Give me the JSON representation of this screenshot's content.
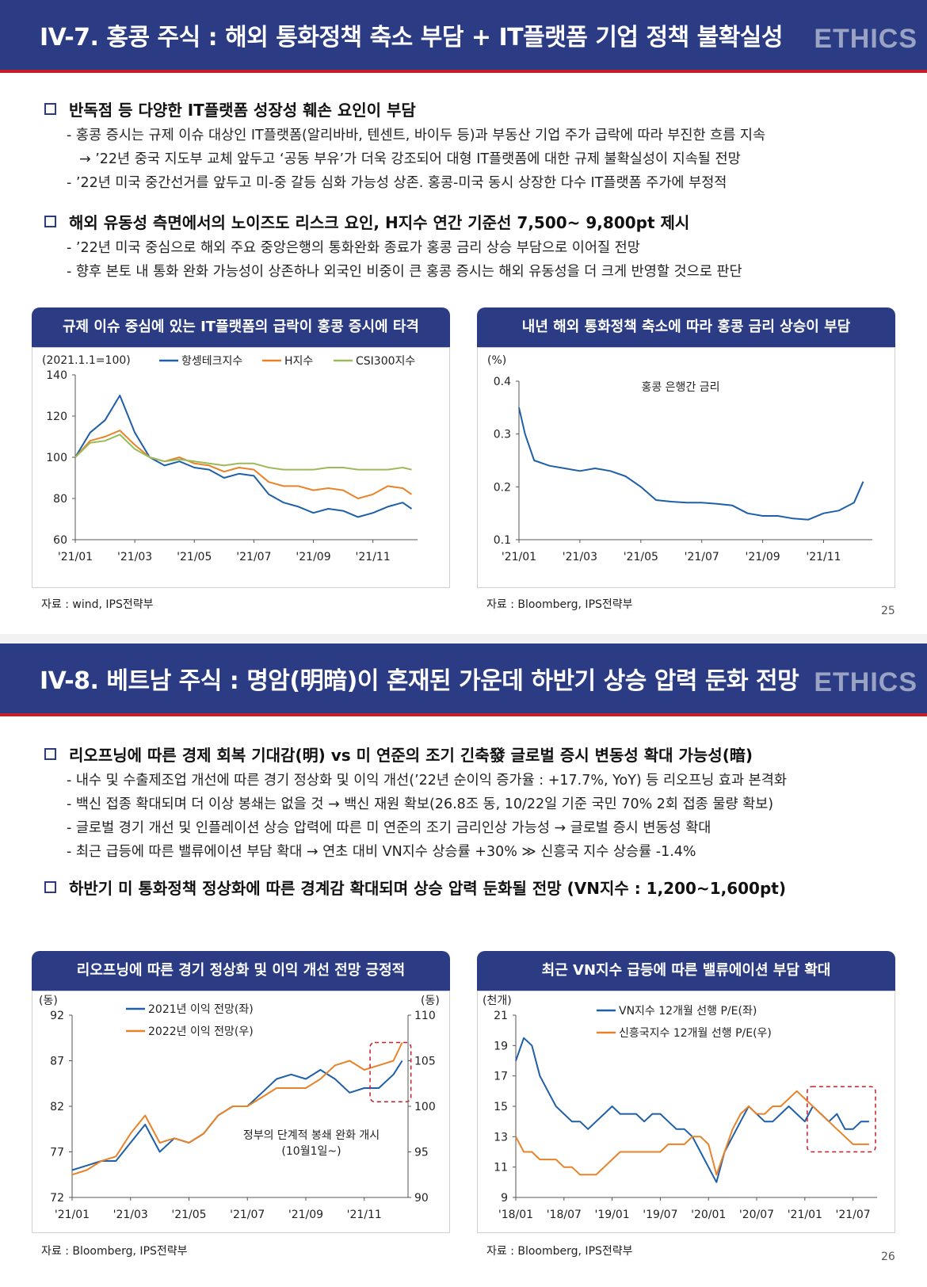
{
  "page1": {
    "title": "IV-7. 홍콩 주식 : 해외 통화정책 축소 부담 + IT플랫폼 기업 정책 불확실성",
    "brand": "ETHICS",
    "bullets": [
      {
        "head": "반독점 등 다양한 IT플랫폼 성장성 훼손 요인이 부담",
        "subs": [
          "- 홍콩 증시는 규제 이슈 대상인 IT플랫폼(알리바바, 텐센트, 바이두 등)과 부동산 기업 주가 급락에 따라 부진한 흐름 지속",
          "→ ’22년 중국 지도부 교체 앞두고 ‘공동 부유’가 더욱 강조되어 대형 IT플랫폼에 대한 규제 불확실성이 지속될 전망",
          "- ’22년 미국 중간선거를 앞두고 미-중 갈등 심화 가능성 상존. 홍콩-미국 동시 상장한 다수 IT플랫폼 주가에 부정적"
        ]
      },
      {
        "head": "해외 유동성 측면에서의 노이즈도 리스크 요인, H지수 연간 기준선 7,500~ 9,800pt 제시",
        "subs": [
          "- ’22년 미국 중심으로 해외 주요 중앙은행의 통화완화 종료가 홍콩 금리 상승 부담으로 이어질 전망",
          "- 향후 본토 내 통화 완화 가능성이 상존하나 외국인 비중이 큰 홍콩 증시는 해외 유동성을 더 크게 반영할 것으로 판단"
        ]
      }
    ],
    "chart1": {
      "title": "규제 이슈 중심에 있는 IT플랫폼의 급락이 홍콩 증시에 타격",
      "unit": "(2021.1.1=100)",
      "legend": [
        "항셍테크지수",
        "H지수",
        "CSI300지수"
      ],
      "source": "자료 : wind, IPS전략부"
    },
    "chart2": {
      "title": "내년 해외 통화정책 축소에 따라 홍콩 금리 상승이 부담",
      "unit": "(%)",
      "annotation": "홍콩 은행간 금리",
      "source": "자료 : Bloomberg, IPS전략부"
    },
    "page_number": "25"
  },
  "page2": {
    "title": "IV-8. 베트남 주식 : 명암(明暗)이 혼재된 가운데 하반기 상승 압력 둔화 전망",
    "brand": "ETHICS",
    "bullets": [
      {
        "head": "리오프닝에 따른 경제 회복 기대감(明) vs 미 연준의 조기 긴축發 글로벌 증시 변동성 확대 가능성(暗)",
        "subs": [
          "- 내수 및 수출제조업 개선에 따른 경기 정상화 및 이익 개선(’22년 순이익 증가율 : +17.7%, YoY) 등 리오프닝 효과 본격화",
          "- 백신 접종 확대되며 더 이상 봉쇄는 없을 것 → 백신 재원 확보(26.8조 동, 10/22일 기준 국민 70% 2회 접종 물량 확보)",
          "- 글로벌 경기 개선 및 인플레이션 상승 압력에 따른 미 연준의 조기 금리인상 가능성 → 글로벌 증시 변동성 확대",
          "- 최근 급등에 따른 밸류에이션 부담 확대 → 연초 대비 VN지수 상승률 +30% ≫ 신흥국 지수 상승률 -1.4%"
        ]
      },
      {
        "head": "하반기 미 통화정책 정상화에 따른 경계감 확대되며 상승 압력 둔화될 전망 (VN지수 : 1,200~1,600pt)",
        "subs": []
      }
    ],
    "chart3": {
      "title": "리오프닝에 따른 경기 정상화 및 이익 개선 전망 긍정적",
      "unit_left": "(동)",
      "unit_right": "(동)",
      "legend": [
        "2021년 이익 전망(좌)",
        "2022년 이익 전망(우)"
      ],
      "annotation_line1": "정부의 단계적 봉쇄 완화 개시",
      "annotation_line2": "(10월1일~)",
      "source": "자료 : Bloomberg, IPS전략부"
    },
    "chart4": {
      "title": "최근 VN지수 급등에 따른 밸류에이션 부담 확대",
      "unit": "(천개)",
      "legend": [
        "VN지수 12개월 선행 P/E(좌)",
        "신흥국지수 12개월 선행 P/E(우)"
      ],
      "source": "자료 : Bloomberg, IPS전략부"
    },
    "page_number": "26"
  },
  "colors": {
    "navy": "#2b3c85",
    "red": "#c41e2a",
    "blue_series": "#1f5fa8",
    "orange_series": "#e8832a",
    "green_series": "#9bbb59"
  },
  "chart_data": [
    {
      "type": "line",
      "title": "규제 이슈 중심에 있는 IT플랫폼의 급락이 홍콩 증시에 타격",
      "ylabel": "(2021.1.1=100)",
      "ylim": [
        60,
        140
      ],
      "yticks": [
        60,
        80,
        100,
        120,
        140
      ],
      "categories": [
        "'21/01",
        "'21/03",
        "'21/05",
        "'21/07",
        "'21/09",
        "'21/11"
      ],
      "x": [
        0,
        0.5,
        1,
        1.5,
        2,
        2.5,
        3,
        3.5,
        4,
        4.5,
        5,
        5.5,
        6,
        6.5,
        7,
        7.5,
        8,
        8.5,
        9,
        9.5,
        10,
        10.5,
        11,
        11.3
      ],
      "series": [
        {
          "name": "항셍테크지수",
          "values": [
            100,
            112,
            118,
            130,
            112,
            100,
            96,
            98,
            95,
            94,
            90,
            92,
            91,
            82,
            78,
            76,
            73,
            75,
            74,
            71,
            73,
            76,
            78,
            75
          ]
        },
        {
          "name": "H지수",
          "values": [
            100,
            108,
            110,
            113,
            106,
            100,
            98,
            100,
            97,
            96,
            93,
            95,
            94,
            88,
            86,
            86,
            84,
            85,
            84,
            80,
            82,
            86,
            85,
            82
          ]
        },
        {
          "name": "CSI300지수",
          "values": [
            100,
            107,
            108,
            111,
            104,
            100,
            98,
            99,
            98,
            97,
            96,
            97,
            97,
            95,
            94,
            94,
            94,
            95,
            95,
            94,
            94,
            94,
            95,
            94
          ]
        }
      ]
    },
    {
      "type": "line",
      "title": "내년 해외 통화정책 축소에 따라 홍콩 금리 상승이 부담",
      "ylabel": "(%)",
      "ylim": [
        0.1,
        0.4
      ],
      "yticks": [
        0.1,
        0.2,
        0.3,
        0.4
      ],
      "categories": [
        "'21/01",
        "'21/03",
        "'21/05",
        "'21/07",
        "'21/09",
        "'21/11"
      ],
      "x": [
        0,
        0.2,
        0.5,
        1,
        1.5,
        2,
        2.5,
        3,
        3.5,
        4,
        4.5,
        5,
        5.5,
        6,
        6.5,
        7,
        7.5,
        8,
        8.5,
        9,
        9.5,
        10,
        10.5,
        11,
        11.3
      ],
      "series": [
        {
          "name": "홍콩 은행간 금리",
          "values": [
            0.35,
            0.3,
            0.25,
            0.24,
            0.235,
            0.23,
            0.235,
            0.23,
            0.22,
            0.2,
            0.175,
            0.172,
            0.17,
            0.17,
            0.168,
            0.165,
            0.15,
            0.145,
            0.145,
            0.14,
            0.138,
            0.15,
            0.155,
            0.17,
            0.21
          ]
        }
      ]
    },
    {
      "type": "line",
      "title": "리오프닝에 따른 경기 정상화 및 이익 개선 전망 긍정적",
      "ylabel": "(동)",
      "ylim": [
        72,
        92
      ],
      "yticks": [
        72,
        77,
        82,
        87,
        92
      ],
      "ylim_right": [
        90,
        110
      ],
      "yticks_right": [
        90,
        95,
        100,
        105,
        110
      ],
      "categories": [
        "'21/01",
        "'21/03",
        "'21/05",
        "'21/07",
        "'21/09",
        "'21/11"
      ],
      "x": [
        0,
        0.5,
        1,
        1.5,
        2,
        2.5,
        3,
        3.5,
        4,
        4.5,
        5,
        5.5,
        6,
        6.5,
        7,
        7.5,
        8,
        8.5,
        9,
        9.5,
        10,
        10.5,
        11,
        11.3
      ],
      "series": [
        {
          "name": "2021년 이익 전망(좌)",
          "axis": "left",
          "values": [
            75,
            75.5,
            76,
            76,
            78,
            80,
            77,
            78.5,
            78,
            79,
            81,
            82,
            82,
            83.5,
            85,
            85.5,
            85,
            86,
            85,
            83.5,
            84,
            84,
            85.5,
            87
          ]
        },
        {
          "name": "2022년 이익 전망(우)",
          "axis": "right",
          "values": [
            92.5,
            93,
            94,
            94.5,
            97,
            99,
            96,
            96.5,
            96,
            97,
            99,
            100,
            100,
            101,
            102,
            102,
            102,
            103,
            104.5,
            105,
            104,
            104.5,
            105,
            107
          ]
        }
      ]
    },
    {
      "type": "line",
      "title": "최근 VN지수 급등에 따른 밸류에이션 부담 확대",
      "ylabel": "(천개)",
      "ylim": [
        9,
        21
      ],
      "yticks": [
        9,
        11,
        13,
        15,
        17,
        19,
        21
      ],
      "categories": [
        "'18/01",
        "'18/07",
        "'19/01",
        "'19/07",
        "'20/01",
        "'20/07",
        "'21/01",
        "'21/07"
      ],
      "x": [
        0,
        1,
        2,
        3,
        4,
        5,
        6,
        7,
        8,
        9,
        10,
        11,
        12,
        13,
        14,
        15,
        16,
        17,
        18,
        19,
        20,
        21,
        22,
        23,
        24,
        25,
        26,
        27,
        28,
        29,
        30,
        31,
        32,
        33,
        34,
        35,
        36,
        37,
        38,
        39,
        40,
        41,
        42,
        43,
        44
      ],
      "series": [
        {
          "name": "VN지수 12개월 선행 P/E(좌)",
          "values": [
            18,
            19.5,
            19,
            17,
            16,
            15,
            14.5,
            14,
            14,
            13.5,
            14,
            14.5,
            15,
            14.5,
            14.5,
            14.5,
            14,
            14.5,
            14.5,
            14,
            13.5,
            13.5,
            13,
            12,
            11,
            10,
            12,
            13,
            14,
            15,
            14.5,
            14,
            14,
            14.5,
            15,
            14.5,
            14,
            15,
            14.5,
            14,
            14.5,
            13.5,
            13.5,
            14,
            14
          ]
        },
        {
          "name": "신흥국지수 12개월 선행 P/E(우)",
          "values": [
            13,
            12,
            12,
            11.5,
            11.5,
            11.5,
            11,
            11,
            10.5,
            10.5,
            10.5,
            11,
            11.5,
            12,
            12,
            12,
            12,
            12,
            12,
            12.5,
            12.5,
            12.5,
            13,
            13,
            12.5,
            10.5,
            12,
            13.5,
            14.5,
            15,
            14.5,
            14.5,
            15,
            15,
            15.5,
            16,
            15.5,
            15,
            14.5,
            14,
            13.5,
            13,
            12.5,
            12.5,
            12.5
          ]
        }
      ]
    }
  ]
}
